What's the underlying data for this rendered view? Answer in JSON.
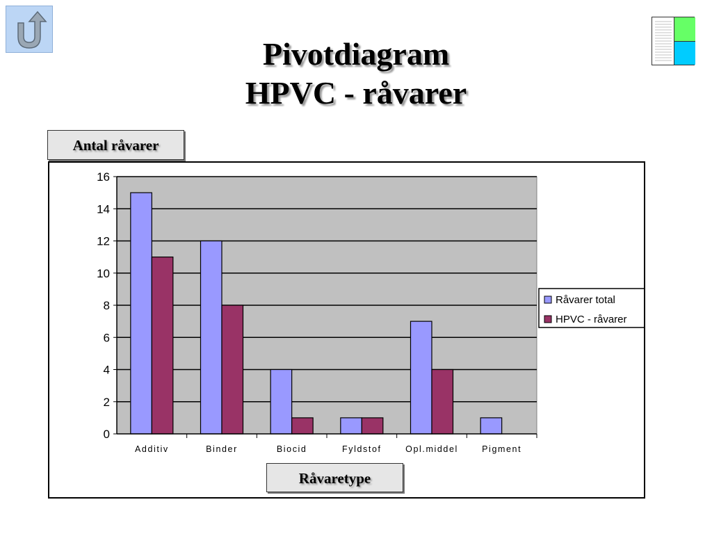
{
  "title": {
    "line1": "Pivotdiagram",
    "line2": "HPVC - råvarer"
  },
  "ylabel_button": "Antal råvarer",
  "xlabel_button": "Råvaretype",
  "colors": {
    "series_total": "#9999ff",
    "series_hpvc": "#993366",
    "plot_bg": "#c0c0c0",
    "back_button": "#bcd6f5",
    "thumb_green": "#66ff66",
    "thumb_cyan": "#00ccff"
  },
  "icons": {
    "back": "u-turn-arrow-icon",
    "thumbnail": "worksheet-thumbnail-icon"
  },
  "chart_data": {
    "type": "bar",
    "categories": [
      "Additiv",
      "Binder",
      "Biocid",
      "Fyldstof",
      "Opl.middel",
      "Pigment"
    ],
    "series": [
      {
        "name": "Råvarer total",
        "values": [
          15,
          12,
          4,
          1,
          7,
          1
        ]
      },
      {
        "name": "HPVC - råvarer",
        "values": [
          11,
          8,
          1,
          1,
          4,
          0
        ]
      }
    ],
    "ylim": [
      0,
      16
    ],
    "yticks": [
      0,
      2,
      4,
      6,
      8,
      10,
      12,
      14,
      16
    ],
    "xlabel": "Råvaretype",
    "ylabel": "Antal råvarer",
    "grid": true,
    "legend": "right"
  }
}
